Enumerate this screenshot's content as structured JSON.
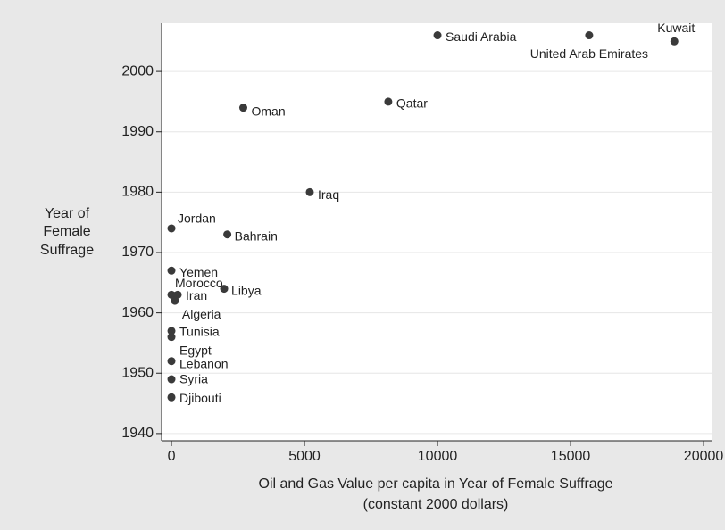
{
  "chart_data": {
    "type": "scatter",
    "x_label": [
      "Oil and Gas Value per capita in Year of Female Suffrage",
      "(constant 2000 dollars)"
    ],
    "y_label": [
      "Year of",
      "Female",
      "Suffrage"
    ],
    "labels": [
      "Saudi Arabia",
      "United Arab Emirates",
      "Kuwait",
      "Qatar",
      "Oman",
      "Iraq",
      "Jordan",
      "Bahrain",
      "Yemen",
      "Libya",
      "Morocco",
      "Iran",
      "Algeria",
      "Tunisia",
      "Egypt",
      "Lebanon",
      "Syria",
      "Djibouti"
    ],
    "x": [
      10000,
      15700,
      18900,
      8150,
      2700,
      5200,
      0,
      2100,
      0,
      1980,
      0,
      235,
      130,
      0,
      0,
      0,
      0,
      0
    ],
    "values": [
      2006,
      2006,
      2005,
      1995,
      1994,
      1980,
      1974,
      1973,
      1967,
      1964,
      1963,
      1963,
      1962,
      1957,
      1956,
      1952,
      1949,
      1946
    ],
    "color": "#3a3a3a",
    "xlim": [
      -370,
      20300
    ],
    "ylim": [
      1938.8,
      2008
    ],
    "xticks": [
      0,
      5000,
      10000,
      15000,
      20000
    ],
    "yticks": [
      1940,
      1950,
      1960,
      1970,
      1980,
      1990,
      2000
    ],
    "grid": true
  }
}
